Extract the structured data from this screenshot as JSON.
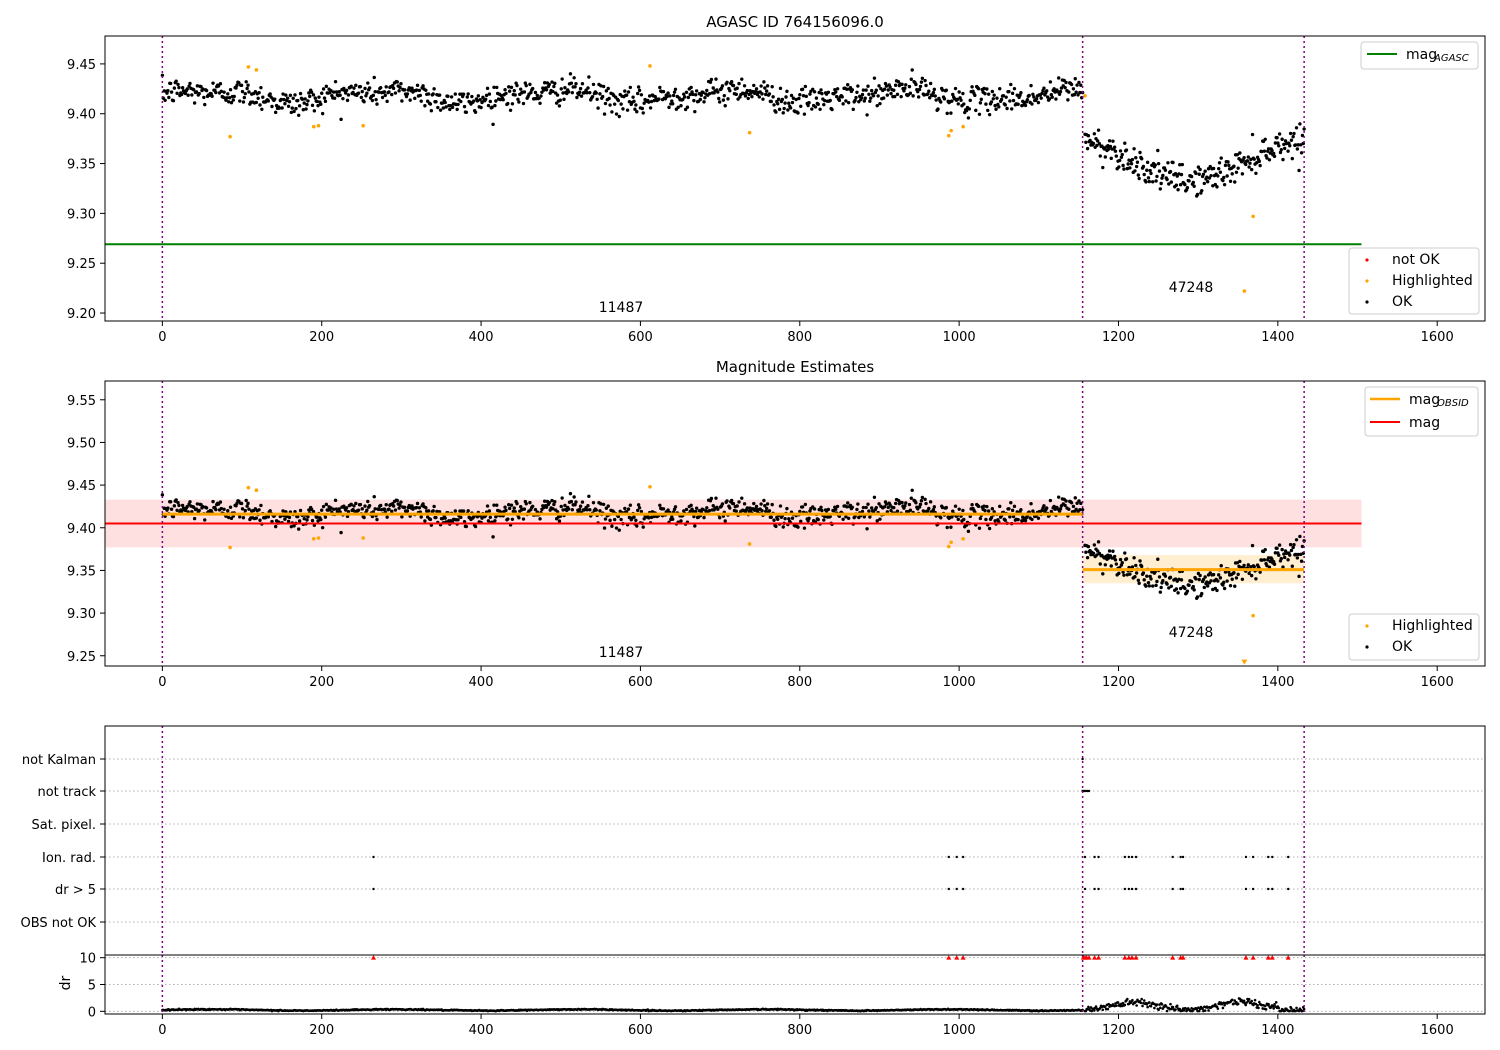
{
  "chart_data": [
    {
      "type": "scatter",
      "title": "AGASC ID 764156096.0",
      "xlim": [
        -72,
        1660
      ],
      "ylim": [
        9.192,
        9.478
      ],
      "x_ticks": [
        0,
        200,
        400,
        600,
        800,
        1000,
        1200,
        1400,
        1600
      ],
      "y_ticks": [
        9.2,
        9.25,
        9.3,
        9.35,
        9.4,
        9.45
      ],
      "y_tick_labels": [
        "9.20",
        "9.25",
        "9.30",
        "9.35",
        "9.40",
        "9.45"
      ],
      "vlines": [
        0,
        1155,
        1433
      ],
      "reference_lines": [
        {
          "y": 9.269,
          "x_end": 1505,
          "color": "#008000"
        }
      ],
      "obsid_labels": [
        {
          "text": "11487",
          "x": 577,
          "y": 9.204
        },
        {
          "text": "47248",
          "x": 1292,
          "y": 9.224
        }
      ],
      "segments": [
        {
          "x_start": 0,
          "x_end": 1155,
          "center": 9.418,
          "wave_amplitude": 0.008,
          "spread": 0.012,
          "count": 1000
        },
        {
          "x_start": 1158,
          "x_end": 1433,
          "center": 9.353,
          "wave_amplitude": 0.02,
          "spread": 0.014,
          "count": 260
        }
      ],
      "highlighted_points": [
        [
          85,
          9.377
        ],
        [
          108,
          9.447
        ],
        [
          118,
          9.444
        ],
        [
          190,
          9.387
        ],
        [
          196,
          9.388
        ],
        [
          252,
          9.388
        ],
        [
          612,
          9.448
        ],
        [
          737,
          9.381
        ],
        [
          987,
          9.378
        ],
        [
          990,
          9.383
        ],
        [
          1005,
          9.387
        ],
        [
          1158,
          9.418
        ],
        [
          1358,
          9.222
        ],
        [
          1369,
          9.297
        ]
      ],
      "legend": {
        "placement": "top-right",
        "entries": [
          {
            "label": "mag",
            "sub": "AGASC",
            "color": "#008000"
          }
        ]
      },
      "legend_points": {
        "placement": "bottom-right",
        "entries": [
          {
            "label": "not OK",
            "color": "#ff0000"
          },
          {
            "label": "Highlighted",
            "color": "#ffa500"
          },
          {
            "label": "OK",
            "color": "#000000"
          }
        ]
      }
    },
    {
      "type": "scatter",
      "title": "Magnitude Estimates",
      "xlim": [
        -72,
        1660
      ],
      "ylim": [
        9.238,
        9.572
      ],
      "x_ticks": [
        0,
        200,
        400,
        600,
        800,
        1000,
        1200,
        1400,
        1600
      ],
      "y_ticks": [
        9.25,
        9.3,
        9.35,
        9.4,
        9.45,
        9.5,
        9.55
      ],
      "y_tick_labels": [
        "9.25",
        "9.30",
        "9.35",
        "9.40",
        "9.45",
        "9.50",
        "9.55"
      ],
      "vlines": [
        0,
        1155,
        1433
      ],
      "bands": [
        {
          "x_start": -72,
          "x_end": 1505,
          "y_low": 9.377,
          "y_high": 9.433,
          "color": "#ffcccc"
        },
        {
          "x_start": 1155,
          "x_end": 1433,
          "y_low": 9.335,
          "y_high": 9.368,
          "color": "#ffe4b0"
        }
      ],
      "mag_lines": [
        {
          "name": "mag_obsid",
          "y": 9.416,
          "x_start": 0,
          "x_end": 1155,
          "color": "#ffa500"
        },
        {
          "name": "mag_obsid",
          "y": 9.351,
          "x_start": 1155,
          "x_end": 1433,
          "color": "#ffa500"
        },
        {
          "name": "mag",
          "y": 9.405,
          "x_start": -72,
          "x_end": 1505,
          "color": "#ff0000"
        }
      ],
      "obsid_labels": [
        {
          "text": "11487",
          "x": 577,
          "y": 9.249
        },
        {
          "text": "47248",
          "x": 1292,
          "y": 9.274
        }
      ],
      "highlighted_points": [
        [
          85,
          9.377
        ],
        [
          108,
          9.447
        ],
        [
          118,
          9.444
        ],
        [
          190,
          9.387
        ],
        [
          196,
          9.388
        ],
        [
          252,
          9.388
        ],
        [
          612,
          9.448
        ],
        [
          737,
          9.381
        ],
        [
          987,
          9.378
        ],
        [
          990,
          9.383
        ],
        [
          1005,
          9.387
        ],
        [
          1369,
          9.297
        ]
      ],
      "clipped_points": [
        [
          1358,
          9.242
        ]
      ],
      "legend": {
        "placement": "top-right",
        "entries": [
          {
            "label": "mag",
            "sub": "OBSID",
            "color": "#ffa500"
          },
          {
            "label": "mag",
            "sub": "",
            "color": "#ff0000"
          }
        ]
      },
      "legend_points": {
        "placement": "bottom-right",
        "entries": [
          {
            "label": "Highlighted",
            "color": "#ffa500"
          },
          {
            "label": "OK",
            "color": "#000000"
          }
        ]
      }
    },
    {
      "type": "scatter",
      "title": "",
      "xlim": [
        -72,
        1660
      ],
      "categories": [
        "not Kalman",
        "not track",
        "Sat. pixel.",
        "Ion. rad.",
        "dr > 5",
        "OBS not OK"
      ],
      "vlines": [
        0,
        1155,
        1433
      ],
      "flags": {
        "not Kalman": [
          1155
        ],
        "not track": [
          1155,
          1157,
          1159,
          1161,
          1163
        ],
        "Sat. pixel.": [],
        "Ion. rad.": [
          265,
          987,
          997,
          1005,
          1158,
          1170,
          1175,
          1208,
          1213,
          1217,
          1222,
          1268,
          1278,
          1281,
          1360,
          1369,
          1388,
          1393,
          1413
        ],
        "dr > 5": [
          265,
          987,
          997,
          1005,
          1158,
          1170,
          1175,
          1208,
          1213,
          1217,
          1222,
          1268,
          1278,
          1281,
          1360,
          1369,
          1388,
          1393,
          1413
        ],
        "OBS not OK": []
      }
    },
    {
      "type": "scatter",
      "title": "",
      "ylabel": "dr",
      "xlim": [
        -72,
        1660
      ],
      "ylim": [
        -0.5,
        10.5
      ],
      "x_ticks": [
        0,
        200,
        400,
        600,
        800,
        1000,
        1200,
        1400,
        1600
      ],
      "y_ticks": [
        0,
        5,
        10
      ],
      "y_tick_labels": [
        "0",
        "5",
        "10"
      ],
      "vlines": [
        0,
        1155,
        1433
      ],
      "clipped_points": [
        [
          265,
          10
        ],
        [
          987,
          10
        ],
        [
          997,
          10
        ],
        [
          1005,
          10
        ],
        [
          1156,
          10
        ],
        [
          1158,
          10
        ],
        [
          1160,
          10
        ],
        [
          1163,
          10
        ],
        [
          1170,
          10
        ],
        [
          1175,
          10
        ],
        [
          1208,
          10
        ],
        [
          1213,
          10
        ],
        [
          1217,
          10
        ],
        [
          1222,
          10
        ],
        [
          1268,
          10
        ],
        [
          1278,
          10
        ],
        [
          1281,
          10
        ],
        [
          1360,
          10
        ],
        [
          1369,
          10
        ],
        [
          1388,
          10
        ],
        [
          1393,
          10
        ],
        [
          1413,
          10
        ]
      ],
      "segments": [
        {
          "x_start": 0,
          "x_end": 1155,
          "typical_value": 0.25,
          "max_value": 0.7
        },
        {
          "x_start": 1158,
          "x_end": 1433,
          "typical_value": 1.0,
          "max_value": 2.4
        }
      ]
    }
  ]
}
